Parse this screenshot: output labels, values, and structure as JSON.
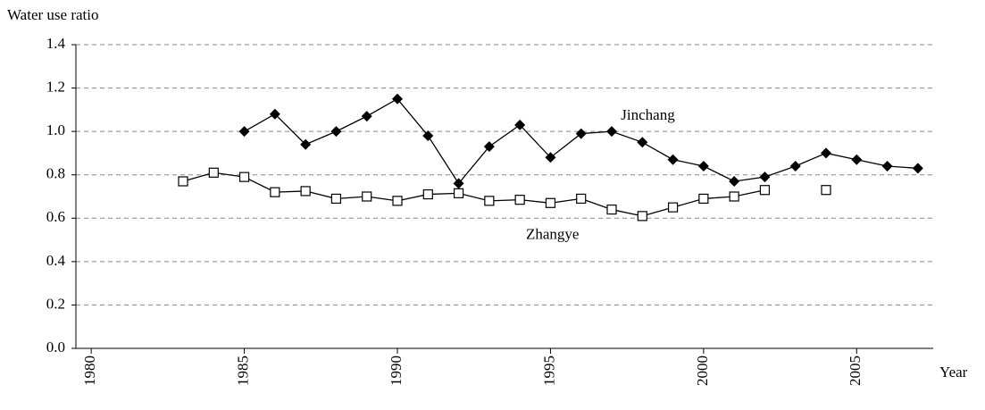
{
  "chart_data": {
    "type": "line",
    "y_label": "Water use ratio",
    "x_label": "Year",
    "xlim": [
      1979.5,
      2007.5
    ],
    "xticks": [
      1980,
      1985,
      1990,
      1995,
      2000,
      2005
    ],
    "ylim": [
      0,
      1.4
    ],
    "yticks": [
      {
        "value": 0,
        "label": "0.0"
      },
      0.2,
      0.4,
      0.6,
      0.8,
      {
        "value": 1,
        "label": "1.0"
      },
      1.2,
      1.4
    ],
    "grid": true,
    "series": [
      {
        "name": "Jinchang",
        "color": "#000000",
        "marker": "diamond",
        "x": [
          1985,
          1986,
          1987,
          1988,
          1989,
          1990,
          1991,
          1992,
          1993,
          1994,
          1995,
          1996,
          1997,
          1998,
          1999,
          2000,
          2001,
          2002,
          2003,
          2004,
          2005,
          2006,
          2007
        ],
        "values": [
          1.0,
          1.08,
          0.94,
          1.0,
          1.07,
          1.15,
          0.98,
          0.76,
          0.93,
          1.03,
          0.88,
          0.99,
          1.0,
          0.95,
          0.87,
          0.84,
          0.77,
          0.79,
          0.84,
          0.9,
          0.87,
          0.84,
          0.83
        ]
      },
      {
        "name": "Zhangye",
        "color": "#000000",
        "marker": "square",
        "x": [
          1983,
          1984,
          1985,
          1986,
          1987,
          1988,
          1989,
          1990,
          1991,
          1992,
          1993,
          1994,
          1995,
          1996,
          1997,
          1998,
          1999,
          2000,
          2001,
          2002,
          2003,
          2004
        ],
        "values": [
          0.77,
          0.81,
          0.79,
          0.72,
          0.725,
          0.69,
          0.7,
          0.68,
          0.71,
          0.715,
          0.68,
          0.685,
          0.67,
          0.69,
          0.64,
          0.61,
          0.65,
          0.69,
          0.7,
          0.73,
          null,
          0.73
        ]
      }
    ]
  }
}
